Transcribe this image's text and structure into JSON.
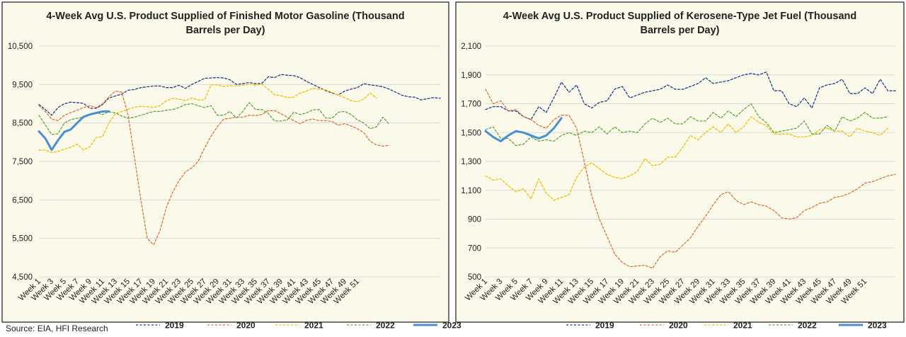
{
  "source": "Source: EIA, HFI Research",
  "series_styles": [
    {
      "name": "2019",
      "color": "#1f3c8c",
      "dash": "3,2.5",
      "width": 1.3
    },
    {
      "name": "2020",
      "color": "#e8733a",
      "dash": "3,2.5",
      "width": 1.3
    },
    {
      "name": "2021",
      "color": "#f5c000",
      "dash": "3,2.5",
      "width": 1.3
    },
    {
      "name": "2022",
      "color": "#5daa3f",
      "dash": "3,2.5",
      "width": 1.3
    },
    {
      "name": "2023",
      "color": "#4a8fd4",
      "dash": "",
      "width": 3
    }
  ],
  "chart_data": [
    {
      "type": "line",
      "title_lines": [
        "4-Week Avg U.S. Product Supplied of Finished Motor Gasoline  (Thousand",
        "Barrels per Day)"
      ],
      "ylim": [
        4500,
        10500
      ],
      "yticks": [
        4500,
        5500,
        6500,
        7500,
        8500,
        9500,
        10500
      ],
      "ytick_labels": [
        "4,500",
        "5,500",
        "6,500",
        "7,500",
        "8,500",
        "9,500",
        "10,500"
      ],
      "xtick_labels": [
        "Week 1",
        "Week 3",
        "Week 5",
        "Week 7",
        "Week 9",
        "Week 11",
        "Week 13",
        "Week 15",
        "Week 17",
        "Week 19",
        "Week 21",
        "Week 23",
        "Week 25",
        "Week 27",
        "Week 29",
        "Week 31",
        "Week 33",
        "Week 35",
        "Week 37",
        "Week 39",
        "Week 41",
        "Week 43",
        "Week 45",
        "Week 47",
        "Week 49",
        "Week 51"
      ],
      "series": [
        {
          "name": "2019",
          "values": [
            8980,
            8850,
            8700,
            8900,
            9000,
            9040,
            9030,
            9010,
            8880,
            8880,
            8980,
            9150,
            9200,
            9250,
            9350,
            9370,
            9420,
            9440,
            9460,
            9460,
            9420,
            9420,
            9480,
            9400,
            9500,
            9580,
            9660,
            9670,
            9680,
            9670,
            9620,
            9500,
            9520,
            9550,
            9520,
            9530,
            9700,
            9680,
            9760,
            9740,
            9730,
            9680,
            9580,
            9500,
            9420,
            9340,
            9280,
            9230,
            9330,
            9380,
            9420,
            9520,
            9490,
            9470,
            9440,
            9380,
            9300,
            9220,
            9180,
            9170,
            9100,
            9130,
            9160,
            9140
          ]
        },
        {
          "name": "2020",
          "values": [
            8950,
            8800,
            8600,
            8560,
            8700,
            8770,
            8830,
            8900,
            8950,
            8900,
            9000,
            9180,
            9330,
            9300,
            8700,
            7600,
            6500,
            5500,
            5330,
            5700,
            6300,
            6700,
            7000,
            7230,
            7330,
            7500,
            7850,
            8150,
            8400,
            8600,
            8620,
            8650,
            8650,
            8700,
            8690,
            8720,
            8820,
            8820,
            8740,
            8650,
            8560,
            8480,
            8570,
            8600,
            8560,
            8560,
            8540,
            8440,
            8480,
            8420,
            8350,
            8250,
            8020,
            7930,
            7900,
            7920
          ]
        },
        {
          "name": "2021",
          "values": [
            7790,
            7800,
            7730,
            7760,
            7820,
            7870,
            7950,
            7800,
            7880,
            8120,
            8150,
            8500,
            8740,
            8800,
            8850,
            8910,
            8930,
            8920,
            8900,
            8950,
            9080,
            9140,
            9120,
            9080,
            9150,
            9100,
            9100,
            9490,
            9490,
            9450,
            9470,
            9460,
            9480,
            9500,
            9480,
            9510,
            9380,
            9230,
            9210,
            9160,
            9170,
            9280,
            9330,
            9400,
            9380,
            9360,
            9300,
            9220,
            9160,
            9080,
            9050,
            9120,
            9280,
            9140
          ]
        },
        {
          "name": "2022",
          "values": [
            8700,
            8450,
            8200,
            8220,
            8500,
            8590,
            8620,
            8650,
            8730,
            8770,
            8720,
            8790,
            8760,
            8680,
            8620,
            8650,
            8700,
            8750,
            8800,
            8800,
            8830,
            8850,
            8900,
            8980,
            9000,
            8950,
            8900,
            8950,
            8700,
            8700,
            8800,
            8630,
            8800,
            9030,
            8850,
            8850,
            8750,
            8550,
            8550,
            8580,
            8780,
            8720,
            8760,
            8840,
            8850,
            8630,
            8620,
            8780,
            8800,
            8720,
            8580,
            8500,
            8350,
            8400,
            8650,
            8460
          ]
        },
        {
          "name": "2023",
          "values": [
            8280,
            8100,
            7800,
            8050,
            8270,
            8330,
            8500,
            8660,
            8720,
            8760,
            8800,
            8800
          ]
        }
      ],
      "legend": [
        "2019",
        "2020",
        "2021",
        "2022",
        "2023"
      ]
    },
    {
      "type": "line",
      "title_lines": [
        "4-Week Avg U.S. Product Supplied of Kerosene-Type Jet Fuel  (Thousand",
        "Barrels per Day)"
      ],
      "ylim": [
        500,
        2100
      ],
      "yticks": [
        500,
        700,
        900,
        1100,
        1300,
        1500,
        1700,
        1900,
        2100
      ],
      "ytick_labels": [
        "500",
        "700",
        "900",
        "1,100",
        "1,300",
        "1,500",
        "1,700",
        "1,900",
        "2,100"
      ],
      "xtick_labels": [
        "Week 1",
        "Week 3",
        "Week 5",
        "Week 7",
        "Week 9",
        "Week 11",
        "Week 13",
        "Week 15",
        "Week 17",
        "Week 19",
        "Week 21",
        "Week 23",
        "Week 25",
        "Week 27",
        "Week 29",
        "Week 31",
        "Week 33",
        "Week 35",
        "Week 37",
        "Week 39",
        "Week 41",
        "Week 43",
        "Week 45",
        "Week 47",
        "Week 49",
        "Week 51"
      ],
      "series": [
        {
          "name": "2019",
          "values": [
            1660,
            1680,
            1680,
            1650,
            1650,
            1610,
            1590,
            1680,
            1640,
            1740,
            1850,
            1780,
            1830,
            1700,
            1670,
            1710,
            1720,
            1800,
            1820,
            1740,
            1760,
            1780,
            1790,
            1800,
            1830,
            1800,
            1800,
            1820,
            1840,
            1880,
            1840,
            1850,
            1860,
            1880,
            1900,
            1910,
            1900,
            1920,
            1790,
            1790,
            1700,
            1680,
            1740,
            1670,
            1810,
            1830,
            1840,
            1870,
            1770,
            1770,
            1810,
            1770,
            1870,
            1790,
            1790
          ]
        },
        {
          "name": "2020",
          "values": [
            1800,
            1700,
            1720,
            1650,
            1660,
            1610,
            1590,
            1550,
            1530,
            1590,
            1620,
            1620,
            1530,
            1300,
            1060,
            900,
            780,
            660,
            600,
            570,
            575,
            580,
            560,
            640,
            680,
            670,
            720,
            770,
            850,
            920,
            1000,
            1070,
            1090,
            1030,
            1000,
            1020,
            1000,
            990,
            960,
            910,
            900,
            910,
            960,
            980,
            1010,
            1020,
            1050,
            1060,
            1080,
            1110,
            1150,
            1160,
            1180,
            1200,
            1210
          ]
        },
        {
          "name": "2021",
          "values": [
            1200,
            1170,
            1180,
            1130,
            1090,
            1110,
            1040,
            1180,
            1080,
            1030,
            1050,
            1070,
            1190,
            1260,
            1290,
            1250,
            1210,
            1190,
            1180,
            1200,
            1230,
            1320,
            1270,
            1280,
            1330,
            1330,
            1400,
            1480,
            1450,
            1500,
            1540,
            1500,
            1560,
            1500,
            1540,
            1610,
            1570,
            1550,
            1490,
            1490,
            1490,
            1470,
            1470,
            1480,
            1520,
            1530,
            1510,
            1510,
            1470,
            1530,
            1510,
            1500,
            1480,
            1530
          ]
        },
        {
          "name": "2022",
          "values": [
            1520,
            1540,
            1460,
            1460,
            1410,
            1420,
            1470,
            1440,
            1450,
            1440,
            1480,
            1500,
            1480,
            1510,
            1500,
            1540,
            1490,
            1540,
            1500,
            1510,
            1500,
            1560,
            1600,
            1570,
            1600,
            1560,
            1560,
            1610,
            1580,
            1580,
            1640,
            1600,
            1650,
            1610,
            1660,
            1700,
            1610,
            1570,
            1500,
            1510,
            1520,
            1530,
            1580,
            1490,
            1490,
            1550,
            1510,
            1610,
            1580,
            1600,
            1640,
            1600,
            1600,
            1610
          ]
        },
        {
          "name": "2023",
          "values": [
            1510,
            1470,
            1440,
            1480,
            1510,
            1500,
            1480,
            1460,
            1480,
            1530,
            1600
          ]
        }
      ],
      "legend": [
        "2019",
        "2020",
        "2021",
        "2022",
        "2023"
      ]
    }
  ]
}
